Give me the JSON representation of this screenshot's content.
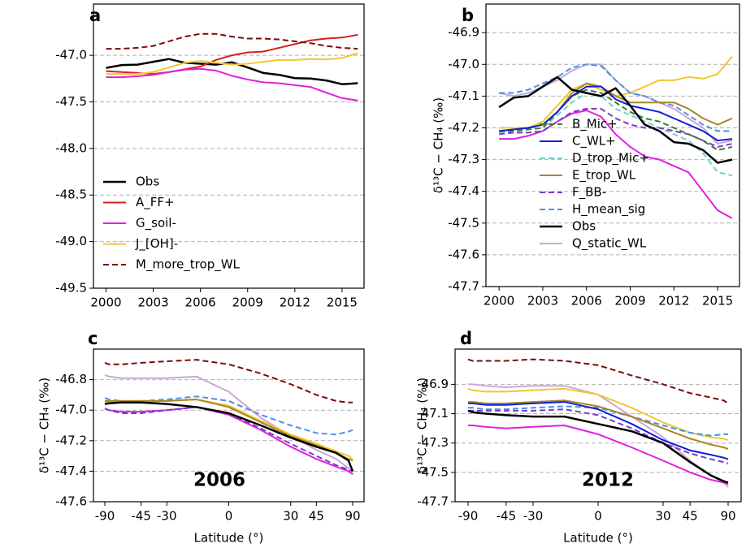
{
  "chart_data": [
    {
      "type": "line",
      "panel_label": "a",
      "legend": "lower left",
      "grid": "y",
      "x": [
        2000,
        2001,
        2002,
        2003,
        2004,
        2005,
        2006,
        2007,
        2008,
        2009,
        2010,
        2011,
        2012,
        2013,
        2014,
        2015,
        2016
      ],
      "xlim": [
        1999.2,
        2016.4
      ],
      "xticks": [
        2000,
        2003,
        2006,
        2009,
        2012,
        2015
      ],
      "ylim": [
        -49.5,
        -46.45
      ],
      "yticks": [
        {
          "value": -49.5,
          "label": "-49.5"
        },
        {
          "value": -49.0,
          "label": "-49.0"
        },
        {
          "value": -48.5,
          "label": "-48.5"
        },
        {
          "value": -48.0,
          "label": "-48.0"
        },
        {
          "value": -47.5,
          "label": "-47.5"
        },
        {
          "value": -47.0,
          "label": "-47.0"
        }
      ],
      "series": [
        {
          "name": "Obs",
          "color": "#000000",
          "width": 2.5,
          "values": [
            -47.135,
            -47.105,
            -47.1,
            -47.07,
            -47.04,
            -47.08,
            -47.09,
            -47.1,
            -47.075,
            -47.13,
            -47.19,
            -47.21,
            -47.245,
            -47.25,
            -47.27,
            -47.31,
            -47.3
          ]
        },
        {
          "name": "A_FF+",
          "color": "#d62020",
          "values": [
            -47.17,
            -47.18,
            -47.19,
            -47.2,
            -47.18,
            -47.15,
            -47.12,
            -47.05,
            -47.0,
            -46.97,
            -46.96,
            -46.92,
            -46.88,
            -46.84,
            -46.82,
            -46.81,
            -46.78
          ]
        },
        {
          "name": "G_soil-",
          "color": "#e020e0",
          "values": [
            -47.235,
            -47.235,
            -47.225,
            -47.21,
            -47.18,
            -47.155,
            -47.145,
            -47.165,
            -47.22,
            -47.26,
            -47.29,
            -47.3,
            -47.32,
            -47.34,
            -47.4,
            -47.46,
            -47.485
          ]
        },
        {
          "name": "J_[OH]-",
          "color": "#f0c830",
          "values": [
            -47.2,
            -47.2,
            -47.2,
            -47.18,
            -47.13,
            -47.08,
            -47.06,
            -47.08,
            -47.1,
            -47.09,
            -47.07,
            -47.05,
            -47.05,
            -47.04,
            -47.045,
            -47.03,
            -46.975
          ]
        },
        {
          "name": "M_more_trop_WL",
          "color": "#7a0a0a",
          "dashed": true,
          "values": [
            -46.93,
            -46.93,
            -46.92,
            -46.9,
            -46.85,
            -46.8,
            -46.77,
            -46.77,
            -46.8,
            -46.82,
            -46.82,
            -46.83,
            -46.85,
            -46.87,
            -46.9,
            -46.92,
            -46.93
          ]
        }
      ]
    },
    {
      "type": "line",
      "panel_label": "b",
      "legend": "lower center",
      "grid": "y",
      "ylabel": "δ¹³C − CH₄ (‰)",
      "x": [
        2000,
        2001,
        2002,
        2003,
        2004,
        2005,
        2006,
        2007,
        2008,
        2009,
        2010,
        2011,
        2012,
        2013,
        2014,
        2015,
        2016
      ],
      "xlim": [
        1999.1,
        2016.5
      ],
      "xticks": [
        2000,
        2003,
        2006,
        2009,
        2012,
        2015
      ],
      "ylim": [
        -47.7,
        -46.81
      ],
      "yticks": [
        -47.7,
        -47.6,
        -47.5,
        -47.4,
        -47.3,
        -47.2,
        -47.1,
        {
          "value": -47.0,
          "label": "-47.0"
        },
        -46.9
      ],
      "series": [
        {
          "color": "#f0c830",
          "values": [
            -47.2,
            -47.2,
            -47.2,
            -47.18,
            -47.13,
            -47.08,
            -47.06,
            -47.08,
            -47.1,
            -47.09,
            -47.07,
            -47.05,
            -47.05,
            -47.04,
            -47.045,
            -47.03,
            -46.975
          ]
        },
        {
          "color": "#e020e0",
          "values": [
            -47.235,
            -47.235,
            -47.225,
            -47.21,
            -47.18,
            -47.155,
            -47.145,
            -47.165,
            -47.22,
            -47.26,
            -47.29,
            -47.3,
            -47.32,
            -47.34,
            -47.4,
            -47.46,
            -47.485
          ]
        },
        {
          "name": "Q_static_WL",
          "color": "#c8a8d8",
          "values": [
            -47.09,
            -47.1,
            -47.09,
            -47.07,
            -47.05,
            -47.02,
            -47.0,
            -47.0,
            -47.05,
            -47.09,
            -47.1,
            -47.12,
            -47.14,
            -47.17,
            -47.2,
            -47.25,
            -47.24
          ]
        },
        {
          "name": "H_mean_sig",
          "color": "#4a90e8",
          "dashed": true,
          "values": [
            -47.09,
            -47.09,
            -47.08,
            -47.06,
            -47.04,
            -47.01,
            -47.0,
            -47.005,
            -47.05,
            -47.09,
            -47.1,
            -47.12,
            -47.13,
            -47.16,
            -47.19,
            -47.21,
            -47.21
          ]
        },
        {
          "name": "E_trop_WL",
          "color": "#a8862a",
          "values": [
            -47.21,
            -47.205,
            -47.2,
            -47.19,
            -47.15,
            -47.09,
            -47.06,
            -47.07,
            -47.1,
            -47.12,
            -47.12,
            -47.12,
            -47.12,
            -47.14,
            -47.17,
            -47.19,
            -47.17
          ]
        },
        {
          "name": "D_trop_Mic+",
          "color": "#70d0d0",
          "dashed": true,
          "values": [
            -47.215,
            -47.21,
            -47.205,
            -47.2,
            -47.16,
            -47.12,
            -47.09,
            -47.1,
            -47.14,
            -47.16,
            -47.18,
            -47.2,
            -47.22,
            -47.24,
            -47.28,
            -47.34,
            -47.35
          ]
        },
        {
          "name": "F_BB-",
          "color": "#7a3ad0",
          "dashed": true,
          "values": [
            -47.22,
            -47.215,
            -47.215,
            -47.21,
            -47.18,
            -47.15,
            -47.14,
            -47.14,
            -47.17,
            -47.19,
            -47.2,
            -47.2,
            -47.21,
            -47.22,
            -47.24,
            -47.26,
            -47.25
          ]
        },
        {
          "name": "B_Mic+",
          "color": "#3c7d2a",
          "dashed": true,
          "values": [
            -47.21,
            -47.21,
            -47.205,
            -47.2,
            -47.15,
            -47.1,
            -47.08,
            -47.09,
            -47.12,
            -47.15,
            -47.17,
            -47.18,
            -47.2,
            -47.22,
            -47.24,
            -47.27,
            -47.26
          ]
        },
        {
          "name": "C_WL+",
          "color": "#1020d8",
          "values": [
            -47.21,
            -47.205,
            -47.2,
            -47.19,
            -47.15,
            -47.1,
            -47.07,
            -47.07,
            -47.11,
            -47.13,
            -47.14,
            -47.15,
            -47.17,
            -47.19,
            -47.21,
            -47.24,
            -47.235
          ]
        },
        {
          "name": "Obs",
          "color": "#000000",
          "width": 2.5,
          "values": [
            -47.135,
            -47.105,
            -47.1,
            -47.07,
            -47.04,
            -47.08,
            -47.09,
            -47.1,
            -47.075,
            -47.13,
            -47.19,
            -47.21,
            -47.245,
            -47.25,
            -47.27,
            -47.31,
            -47.3
          ]
        }
      ]
    },
    {
      "type": "line",
      "panel_label": "c",
      "annotation": "2006",
      "grid": "y",
      "xscale": "sin",
      "ylabel": "δ¹³C − CH₄ (‰)",
      "xlabel": "Latitude (°)",
      "x": [
        -90,
        -75,
        -60,
        -45,
        -30,
        -15,
        0,
        15,
        30,
        45,
        60,
        75,
        90
      ],
      "xlim": [
        -90,
        90
      ],
      "xticks": [
        -90,
        -45,
        -30,
        0,
        30,
        45,
        90
      ],
      "ylim": [
        -47.6,
        -46.6
      ],
      "yticks": [
        -47.6,
        -47.4,
        -47.2,
        {
          "value": -47.0,
          "label": "-47.0"
        },
        -46.8
      ],
      "series": [
        {
          "color": "#7a0a0a",
          "dashed": true,
          "values": [
            -46.69,
            -46.7,
            -46.7,
            -46.69,
            -46.68,
            -46.67,
            -46.7,
            -46.76,
            -46.83,
            -46.9,
            -46.94,
            -46.95,
            -46.95
          ]
        },
        {
          "color": "#c8a8d8",
          "values": [
            -46.77,
            -46.78,
            -46.79,
            -46.79,
            -46.79,
            -46.78,
            -46.88,
            -47.05,
            -47.17,
            -47.26,
            -47.32,
            -47.38,
            -47.42
          ]
        },
        {
          "color": "#4a90e8",
          "dashed": true,
          "values": [
            -46.92,
            -46.93,
            -46.94,
            -46.94,
            -46.93,
            -46.91,
            -46.94,
            -47.03,
            -47.1,
            -47.15,
            -47.16,
            -47.14,
            -47.13
          ]
        },
        {
          "color": "#f0c830",
          "values": [
            -46.95,
            -46.95,
            -46.95,
            -46.95,
            -46.94,
            -46.93,
            -46.97,
            -47.07,
            -47.16,
            -47.22,
            -47.27,
            -47.3,
            -47.32
          ]
        },
        {
          "color": "#a8862a",
          "values": [
            -46.94,
            -46.94,
            -46.94,
            -46.94,
            -46.94,
            -46.93,
            -46.98,
            -47.08,
            -47.17,
            -47.23,
            -47.28,
            -47.32,
            -47.33
          ]
        },
        {
          "color": "#e020e0",
          "values": [
            -46.99,
            -47.0,
            -47.01,
            -47.01,
            -47.0,
            -46.98,
            -47.03,
            -47.13,
            -47.24,
            -47.32,
            -47.37,
            -47.4,
            -47.42
          ]
        },
        {
          "color": "#7a3ad0",
          "dashed": true,
          "values": [
            -46.99,
            -47.0,
            -47.02,
            -47.02,
            -47.0,
            -46.98,
            -47.02,
            -47.12,
            -47.22,
            -47.3,
            -47.36,
            -47.39,
            -47.4
          ]
        },
        {
          "color": "#000000",
          "width": 2.5,
          "values": [
            -46.96,
            -46.955,
            -46.95,
            -46.95,
            -46.96,
            -46.98,
            -47.02,
            -47.1,
            -47.18,
            -47.24,
            -47.28,
            -47.33,
            -47.4
          ]
        }
      ]
    },
    {
      "type": "line",
      "panel_label": "d",
      "annotation": "2012",
      "grid": "y",
      "xscale": "sin",
      "ylabel": "δ¹³C − CH₄ (‰)",
      "xlabel": "Latitude (°)",
      "x": [
        -90,
        -75,
        -60,
        -45,
        -30,
        -15,
        0,
        15,
        30,
        45,
        60,
        75,
        90
      ],
      "xlim": [
        -90,
        90
      ],
      "xticks": [
        -90,
        -45,
        -30,
        0,
        30,
        45,
        90
      ],
      "ylim": [
        -47.7,
        -46.66
      ],
      "yticks": [
        -47.7,
        -47.5,
        -47.3,
        -47.1,
        -46.9
      ],
      "series": [
        {
          "color": "#7a0a0a",
          "dashed": true,
          "values": [
            -46.73,
            -46.74,
            -46.74,
            -46.74,
            -46.73,
            -46.74,
            -46.77,
            -46.84,
            -46.9,
            -46.96,
            -46.99,
            -47.01,
            -47.03
          ]
        },
        {
          "color": "#c8a8d8",
          "values": [
            -46.9,
            -46.9,
            -46.91,
            -46.92,
            -46.91,
            -46.91,
            -46.97,
            -47.12,
            -47.26,
            -47.42,
            -47.52,
            -47.57,
            -47.6
          ]
        },
        {
          "color": "#f0c830",
          "values": [
            -46.93,
            -46.94,
            -46.95,
            -46.95,
            -46.94,
            -46.93,
            -46.97,
            -47.06,
            -47.16,
            -47.23,
            -47.26,
            -47.27,
            -47.28
          ]
        },
        {
          "color": "#4a90e8",
          "dashed": true,
          "values": [
            -47.06,
            -47.06,
            -47.07,
            -47.07,
            -47.06,
            -47.05,
            -47.06,
            -47.12,
            -47.18,
            -47.23,
            -47.25,
            -47.24,
            -47.24
          ]
        },
        {
          "color": "#a8862a",
          "values": [
            -47.02,
            -47.02,
            -47.03,
            -47.03,
            -47.02,
            -47.01,
            -47.05,
            -47.12,
            -47.2,
            -47.27,
            -47.31,
            -47.33,
            -47.34
          ]
        },
        {
          "color": "#1020d8",
          "values": [
            -47.03,
            -47.03,
            -47.04,
            -47.04,
            -47.03,
            -47.02,
            -47.07,
            -47.17,
            -47.28,
            -47.35,
            -47.38,
            -47.4,
            -47.41
          ]
        },
        {
          "color": "#7a3ad0",
          "dashed": true,
          "values": [
            -47.08,
            -47.08,
            -47.08,
            -47.08,
            -47.08,
            -47.07,
            -47.11,
            -47.2,
            -47.3,
            -47.37,
            -47.41,
            -47.43,
            -47.44
          ]
        },
        {
          "color": "#e020e0",
          "values": [
            -47.18,
            -47.18,
            -47.19,
            -47.2,
            -47.19,
            -47.18,
            -47.24,
            -47.33,
            -47.42,
            -47.5,
            -47.55,
            -47.57,
            -47.58
          ]
        },
        {
          "color": "#000000",
          "width": 2.5,
          "values": [
            -47.08,
            -47.09,
            -47.1,
            -47.11,
            -47.12,
            -47.12,
            -47.17,
            -47.22,
            -47.3,
            -47.43,
            -47.52,
            -47.56,
            -47.57
          ]
        }
      ]
    }
  ]
}
